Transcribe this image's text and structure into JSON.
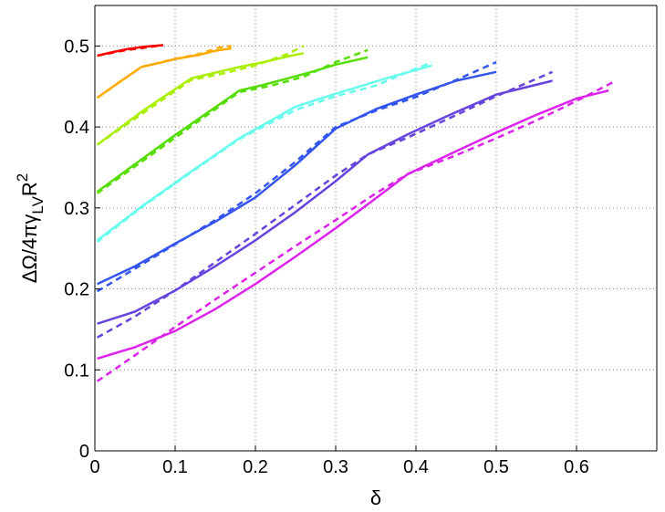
{
  "chart_data": {
    "type": "line",
    "title": "",
    "xlabel": "δ",
    "ylabel_parts": {
      "base": "ΔΩ/4πγ",
      "subscript": "LV",
      "rest": "R",
      "superscript": "2"
    },
    "xlim": [
      0,
      0.7
    ],
    "ylim": [
      0,
      0.55
    ],
    "xticks": [
      0,
      0.1,
      0.2,
      0.3,
      0.4,
      0.5,
      0.6
    ],
    "xtick_labels": [
      "0",
      "0.1",
      "0.2",
      "0.3",
      "0.4",
      "0.5",
      "0.6"
    ],
    "yticks": [
      0,
      0.1,
      0.2,
      0.3,
      0.4,
      0.5
    ],
    "ytick_labels": [
      "0",
      "0.1",
      "0.2",
      "0.3",
      "0.4",
      "0.5"
    ],
    "grid": true,
    "legend": "none",
    "series": [
      {
        "color": "#ff0000",
        "style": "solid",
        "x": [
          0.003,
          0.02,
          0.04,
          0.06,
          0.085
        ],
        "y": [
          0.488,
          0.492,
          0.496,
          0.499,
          0.501
        ]
      },
      {
        "color": "#ff0000",
        "style": "dashed",
        "x": [
          0.003,
          0.04,
          0.085
        ],
        "y": [
          0.488,
          0.495,
          0.501
        ]
      },
      {
        "color": "#ffaa00",
        "style": "solid",
        "x": [
          0.003,
          0.03,
          0.058,
          0.08,
          0.1,
          0.13,
          0.15,
          0.17
        ],
        "y": [
          0.436,
          0.455,
          0.474,
          0.479,
          0.484,
          0.489,
          0.494,
          0.497
        ]
      },
      {
        "color": "#ffaa00",
        "style": "dashed",
        "x": [
          0.003,
          0.058,
          0.1,
          0.13,
          0.155,
          0.17
        ],
        "y": [
          0.436,
          0.474,
          0.484,
          0.49,
          0.498,
          0.5
        ]
      },
      {
        "color": "#aaee00",
        "style": "solid",
        "x": [
          0.003,
          0.06,
          0.12,
          0.15,
          0.18,
          0.21,
          0.24,
          0.26
        ],
        "y": [
          0.378,
          0.42,
          0.46,
          0.467,
          0.474,
          0.48,
          0.487,
          0.491
        ]
      },
      {
        "color": "#aaee00",
        "style": "dashed",
        "x": [
          0.003,
          0.12,
          0.16,
          0.2,
          0.24,
          0.26
        ],
        "y": [
          0.378,
          0.458,
          0.466,
          0.476,
          0.49,
          0.5
        ]
      },
      {
        "color": "#55dd00",
        "style": "solid",
        "x": [
          0.003,
          0.09,
          0.18,
          0.21,
          0.24,
          0.27,
          0.3,
          0.34
        ],
        "y": [
          0.32,
          0.383,
          0.445,
          0.452,
          0.46,
          0.468,
          0.477,
          0.486
        ]
      },
      {
        "color": "#55dd00",
        "style": "dashed",
        "x": [
          0.003,
          0.18,
          0.22,
          0.26,
          0.3,
          0.34
        ],
        "y": [
          0.318,
          0.443,
          0.451,
          0.462,
          0.48,
          0.495
        ]
      },
      {
        "color": "#66ffee",
        "style": "solid",
        "x": [
          0.003,
          0.06,
          0.12,
          0.18,
          0.25,
          0.29,
          0.33,
          0.37,
          0.42
        ],
        "y": [
          0.26,
          0.303,
          0.345,
          0.386,
          0.425,
          0.438,
          0.45,
          0.462,
          0.476
        ]
      },
      {
        "color": "#66ffee",
        "style": "dashed",
        "x": [
          0.003,
          0.06,
          0.12,
          0.18,
          0.25,
          0.3,
          0.35,
          0.39,
          0.42
        ],
        "y": [
          0.258,
          0.302,
          0.344,
          0.385,
          0.421,
          0.438,
          0.451,
          0.468,
          0.48
        ]
      },
      {
        "color": "#3355ee",
        "style": "solid",
        "x": [
          0.003,
          0.05,
          0.1,
          0.15,
          0.2,
          0.25,
          0.3,
          0.35,
          0.4,
          0.45,
          0.5
        ],
        "y": [
          0.206,
          0.228,
          0.256,
          0.283,
          0.313,
          0.353,
          0.398,
          0.422,
          0.44,
          0.457,
          0.468
        ]
      },
      {
        "color": "#3355ee",
        "style": "dashed",
        "x": [
          0.003,
          0.05,
          0.1,
          0.15,
          0.2,
          0.25,
          0.3,
          0.35,
          0.4,
          0.45,
          0.5
        ],
        "y": [
          0.197,
          0.225,
          0.255,
          0.285,
          0.318,
          0.357,
          0.4,
          0.42,
          0.437,
          0.458,
          0.48
        ]
      },
      {
        "color": "#6644dd",
        "style": "solid",
        "x": [
          0.003,
          0.05,
          0.1,
          0.15,
          0.2,
          0.25,
          0.3,
          0.34,
          0.39,
          0.44,
          0.5,
          0.57
        ],
        "y": [
          0.157,
          0.172,
          0.198,
          0.228,
          0.26,
          0.295,
          0.333,
          0.366,
          0.391,
          0.414,
          0.44,
          0.457
        ]
      },
      {
        "color": "#6644dd",
        "style": "dashed",
        "x": [
          0.003,
          0.05,
          0.1,
          0.15,
          0.2,
          0.25,
          0.3,
          0.34,
          0.39,
          0.44,
          0.5,
          0.57
        ],
        "y": [
          0.14,
          0.166,
          0.198,
          0.233,
          0.268,
          0.304,
          0.34,
          0.366,
          0.387,
          0.41,
          0.438,
          0.468
        ]
      },
      {
        "color": "#dd22ee",
        "style": "solid",
        "x": [
          0.003,
          0.05,
          0.1,
          0.15,
          0.2,
          0.25,
          0.3,
          0.35,
          0.39,
          0.45,
          0.5,
          0.55,
          0.6,
          0.64
        ],
        "y": [
          0.114,
          0.128,
          0.148,
          0.175,
          0.206,
          0.24,
          0.275,
          0.312,
          0.342,
          0.37,
          0.393,
          0.415,
          0.435,
          0.445
        ]
      },
      {
        "color": "#dd22ee",
        "style": "dashed",
        "x": [
          0.003,
          0.05,
          0.1,
          0.15,
          0.2,
          0.25,
          0.3,
          0.35,
          0.39,
          0.45,
          0.5,
          0.55,
          0.6,
          0.645
        ],
        "y": [
          0.086,
          0.118,
          0.153,
          0.187,
          0.22,
          0.253,
          0.285,
          0.318,
          0.342,
          0.365,
          0.386,
          0.408,
          0.432,
          0.455
        ]
      }
    ]
  }
}
